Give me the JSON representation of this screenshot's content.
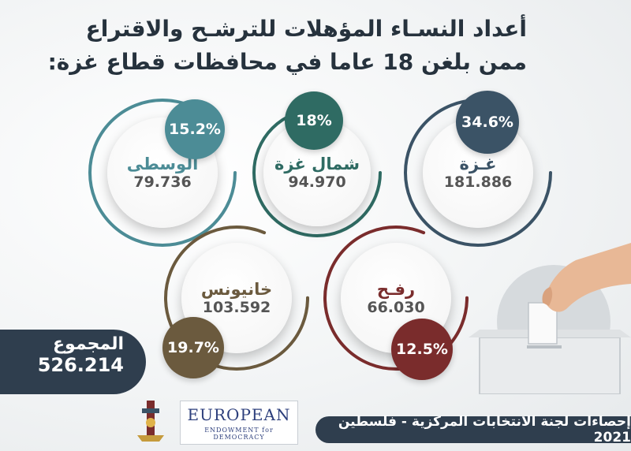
{
  "title_line1": "أعداد النسـاء المؤهلات للترشـح والاقتراع",
  "title_line2": "ممن بلغن 18 عاما في محافظات قطاع غزة:",
  "governorates": [
    {
      "key": "gaza",
      "name": "غـزة",
      "value": "181.886",
      "percent": "34.6%",
      "color": "#3b5366"
    },
    {
      "key": "north",
      "name": "شمال غزة",
      "value": "94.970",
      "percent": "18%",
      "color": "#2f6b63"
    },
    {
      "key": "middle",
      "name": "الوسطى",
      "value": "79.736",
      "percent": "15.2%",
      "color": "#4c8c96"
    },
    {
      "key": "rafah",
      "name": "رفـح",
      "value": "66.030",
      "percent": "12.5%",
      "color": "#7a2c2c"
    },
    {
      "key": "khanyounis",
      "name": "خانيونس",
      "value": "103.592",
      "percent": "19.7%",
      "color": "#6b5a3e"
    }
  ],
  "total": {
    "label": "المجموع",
    "value": "526.214"
  },
  "footer": "إحصاءات لجنة الانتخابات المركزية - فلسطين 2021",
  "logo": {
    "main": "EUROPEAN",
    "sub": "ENDOWMENT for DEMOCRACY"
  }
}
